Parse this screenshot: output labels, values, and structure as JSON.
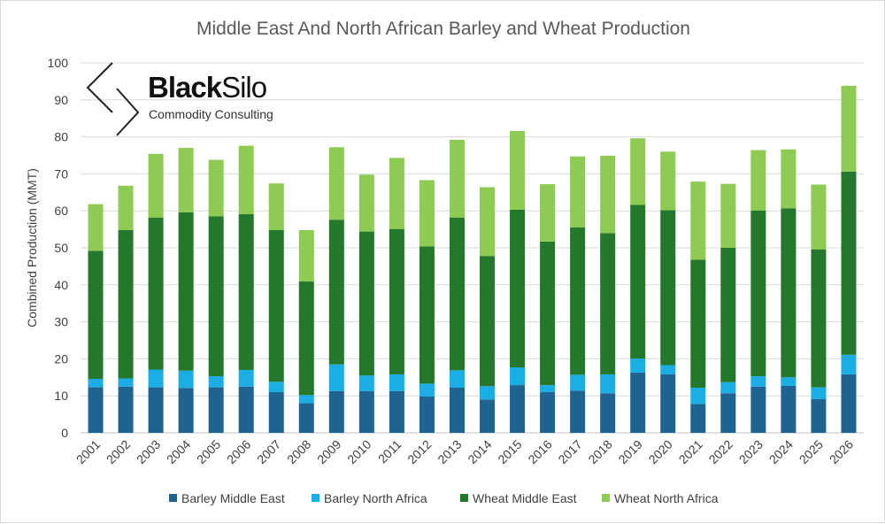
{
  "chart_data": {
    "type": "bar",
    "stacked": true,
    "title": "Middle East And North African Barley and Wheat Production",
    "ylabel": "Combined Production (MMT)",
    "xlabel": "",
    "ylim": [
      0,
      100
    ],
    "yticks": [
      0,
      10,
      20,
      30,
      40,
      50,
      60,
      70,
      80,
      90,
      100
    ],
    "grid": true,
    "legend_position": "bottom",
    "categories": [
      "2001",
      "2002",
      "2003",
      "2004",
      "2005",
      "2006",
      "2007",
      "2008",
      "2009",
      "2010",
      "2011",
      "2012",
      "2013",
      "2014",
      "2015",
      "2016",
      "2017",
      "2018",
      "2019",
      "2020",
      "2021",
      "2022",
      "2023",
      "2024",
      "2025",
      "2026"
    ],
    "series": [
      {
        "name": "Barley Middle East",
        "color": "#1f6391",
        "values": [
          12.3,
          12.5,
          12.3,
          12.1,
          12.3,
          12.5,
          11.0,
          8.0,
          11.3,
          11.3,
          11.3,
          9.8,
          12.2,
          9.0,
          12.9,
          11.0,
          11.4,
          10.7,
          16.3,
          15.8,
          7.8,
          10.7,
          12.5,
          12.7,
          9.1,
          15.8
        ]
      },
      {
        "name": "Barley North Africa",
        "color": "#1aaee5",
        "values": [
          2.3,
          2.2,
          4.8,
          4.7,
          3.0,
          4.5,
          2.8,
          2.2,
          7.2,
          4.2,
          4.5,
          3.5,
          4.7,
          3.6,
          4.8,
          1.9,
          4.3,
          5.1,
          3.8,
          2.5,
          4.4,
          3.0,
          2.8,
          2.3,
          3.2,
          5.3
        ]
      },
      {
        "name": "Wheat Middle East",
        "color": "#23782c",
        "values": [
          34.6,
          40.1,
          41.1,
          42.8,
          43.2,
          42.1,
          41.0,
          30.7,
          39.1,
          38.9,
          39.3,
          37.1,
          41.3,
          35.2,
          42.6,
          38.8,
          39.8,
          38.2,
          41.5,
          41.9,
          34.6,
          36.3,
          44.8,
          45.7,
          37.3,
          49.5
        ]
      },
      {
        "name": "Wheat North Africa",
        "color": "#8dcb52",
        "values": [
          12.6,
          12.0,
          17.2,
          17.4,
          15.3,
          18.5,
          12.6,
          13.9,
          19.6,
          15.4,
          19.2,
          17.9,
          21.0,
          18.6,
          21.3,
          15.5,
          19.2,
          20.9,
          18.0,
          15.8,
          21.1,
          17.3,
          16.3,
          15.9,
          17.5,
          23.2
        ]
      }
    ]
  },
  "logo": {
    "name_part1": "Black",
    "name_part2": "Silo",
    "tagline": "Commodity Consulting"
  }
}
